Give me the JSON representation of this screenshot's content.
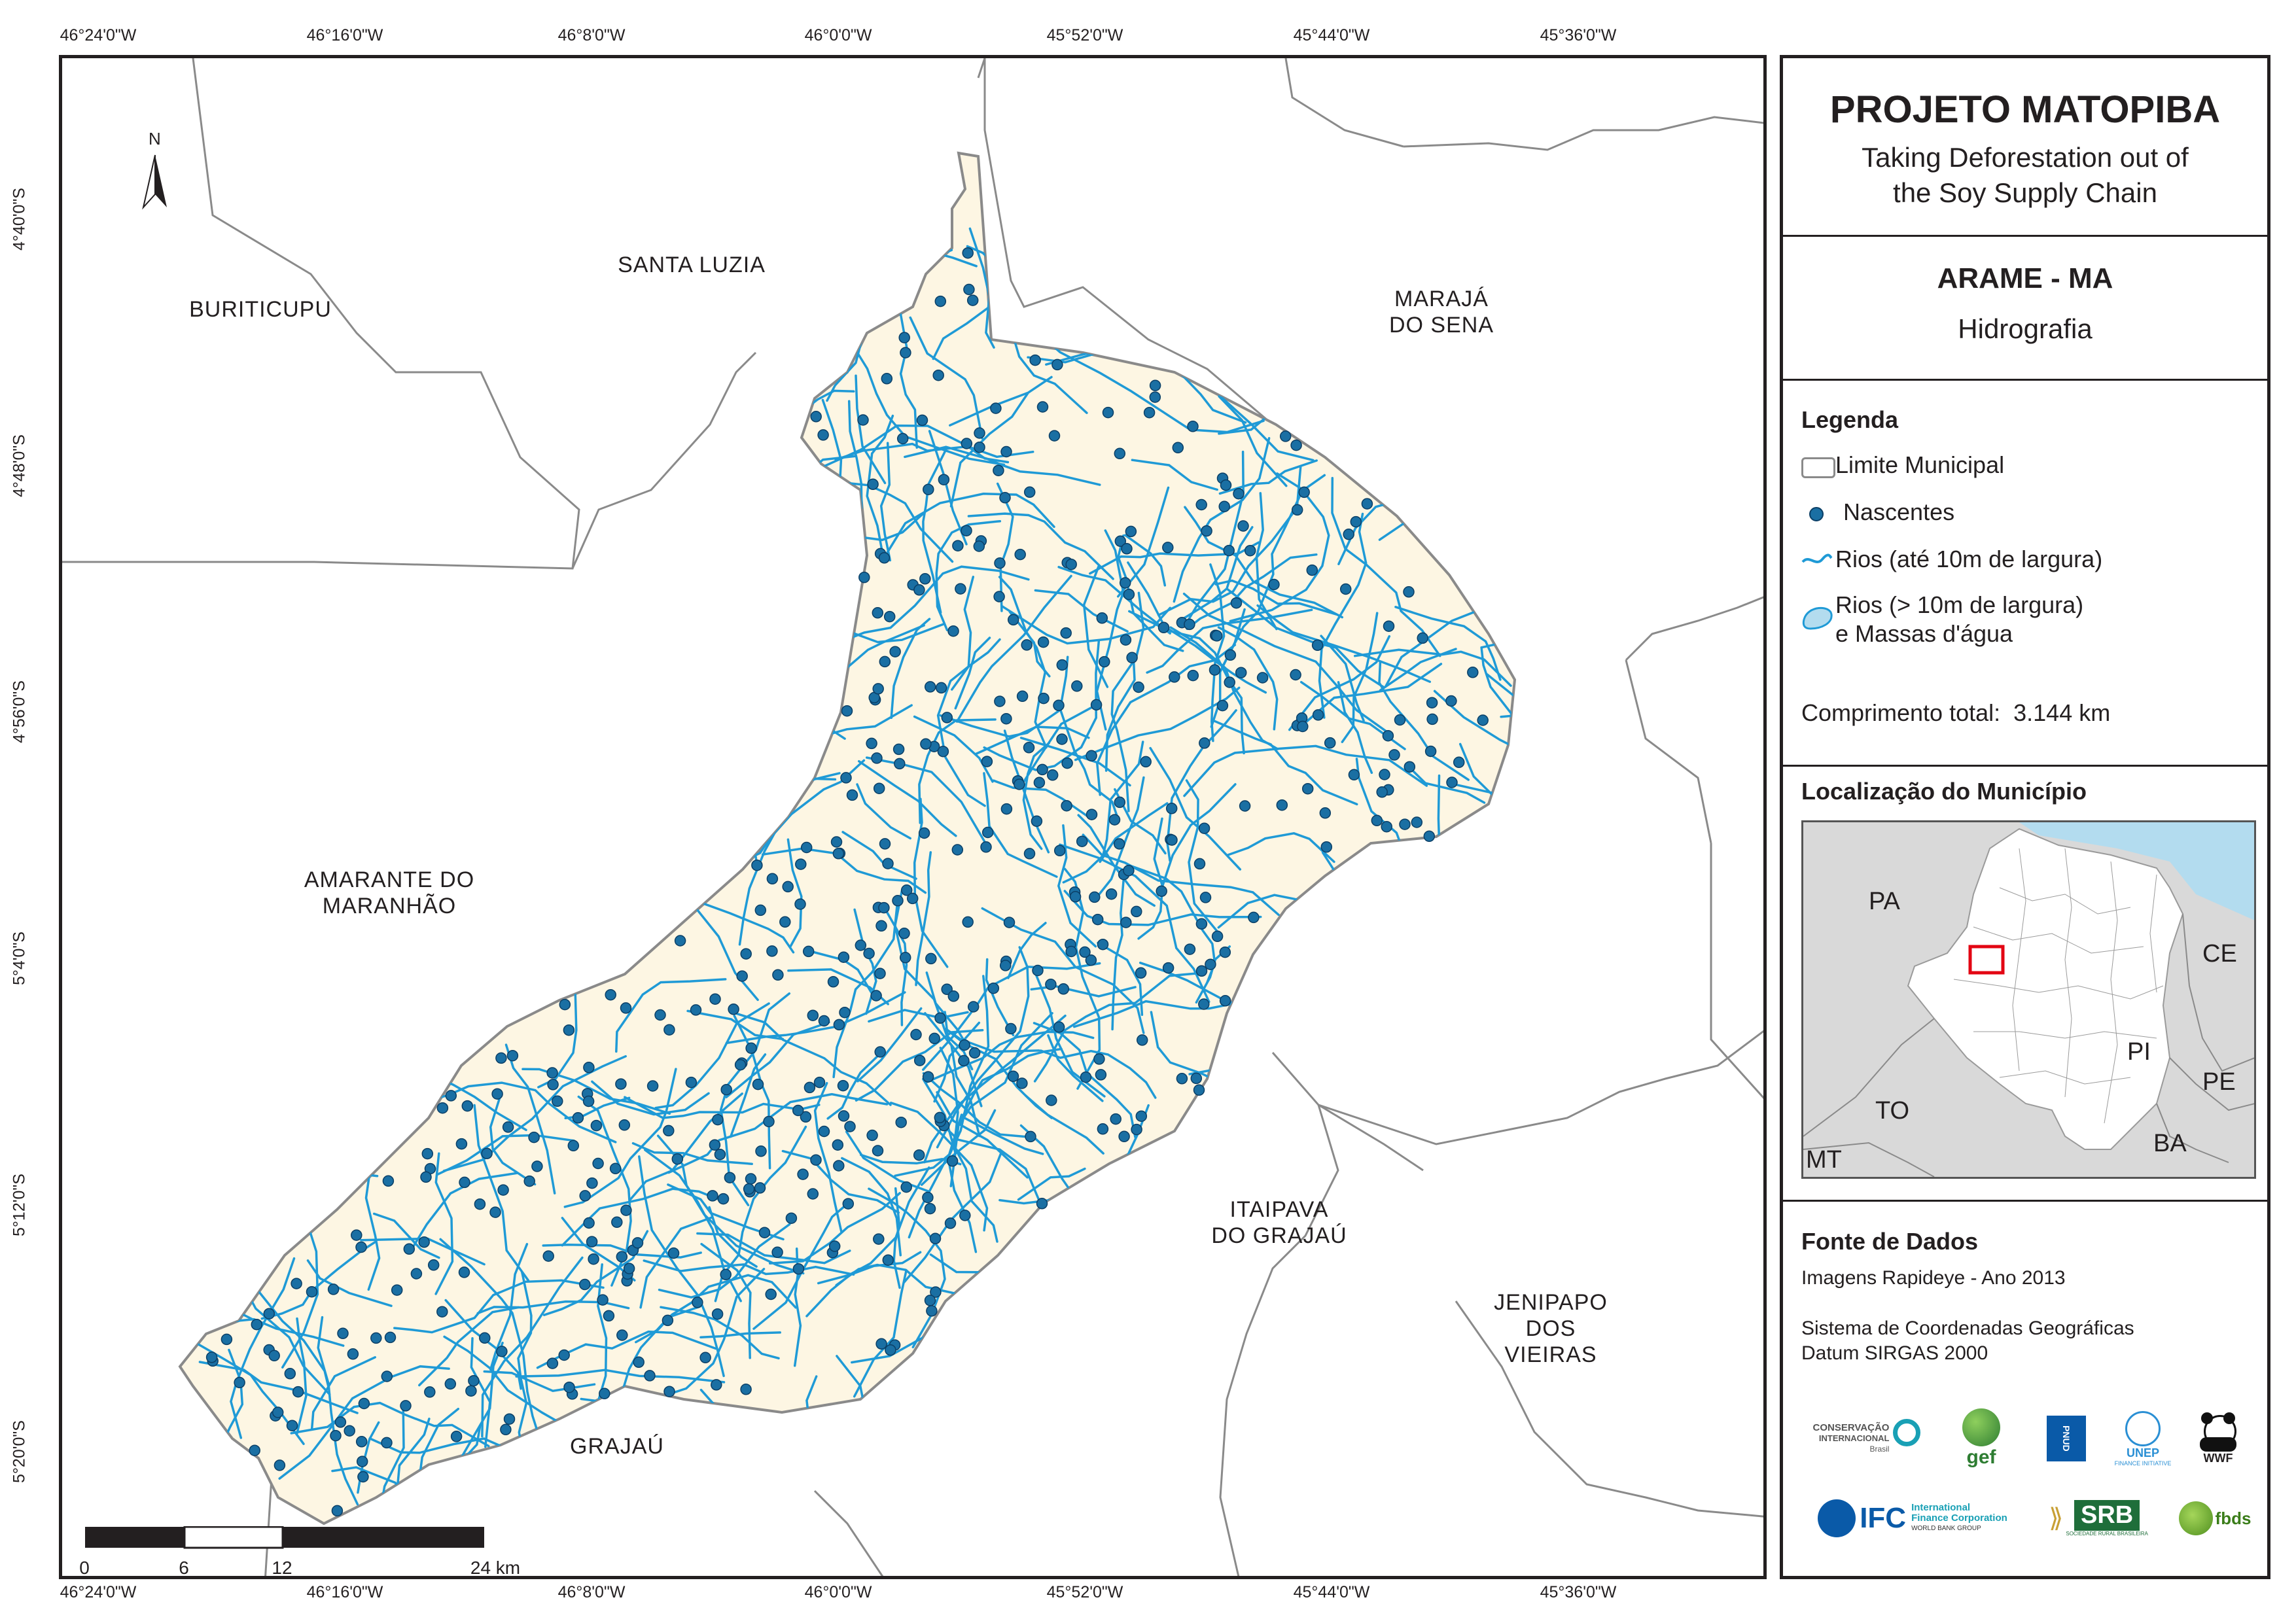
{
  "coordinates": {
    "top": [
      "46°24'0\"W",
      "46°16'0\"W",
      "46°8'0\"W",
      "46°0'0\"W",
      "45°52'0\"W",
      "45°44'0\"W",
      "45°36'0\"W"
    ],
    "bottom": [
      "46°24'0\"W",
      "46°16'0\"W",
      "46°8'0\"W",
      "46°0'0\"W",
      "45°52'0\"W",
      "45°44'0\"W",
      "45°36'0\"W"
    ],
    "left": [
      "4°40'0\"S",
      "4°48'0\"S",
      "4°56'0\"S",
      "5°4'0\"S",
      "5°12'0\"S",
      "5°20'0\"S"
    ]
  },
  "municipalities": {
    "buriticupu": "BURITICUPU",
    "santa_luzia": "SANTA LUZIA",
    "maraja_1": "MARAJÁ",
    "maraja_2": "DO SENA",
    "amarante_1": "AMARANTE DO",
    "amarante_2": "MARANHÃO",
    "itaipava_1": "ITAIPAVA",
    "itaipava_2": "DO GRAJAÚ",
    "jenipapo_1": "JENIPAPO",
    "jenipapo_2": "DOS",
    "jenipapo_3": "VIEIRAS",
    "grajau": "GRAJAÚ"
  },
  "north_label": "N",
  "scale": {
    "ticks": [
      "0",
      "6",
      "12",
      "24 km"
    ]
  },
  "panel": {
    "title": "PROJETO MATOPIBA",
    "subtitle_1": "Taking Deforestation out of",
    "subtitle_2": "the Soy Supply Chain",
    "municipality": "ARAME - MA",
    "theme": "Hidrografia",
    "legend_title": "Legenda",
    "legend": {
      "limite": "Limite Municipal",
      "nascentes": "Nascentes",
      "rios": "Rios (até 10m de largura)",
      "rios_largos_1": "Rios (> 10m de largura)",
      "rios_largos_2": "e Massas d'água"
    },
    "comprimento": "Comprimento total:  3.144 km",
    "localizacao_title": "Localização do Município",
    "loc_labels": {
      "pa": "PA",
      "ce": "CE",
      "pi": "PI",
      "pe": "PE",
      "to": "TO",
      "ba": "BA",
      "mt": "MT"
    },
    "fonte_title": "Fonte de Dados",
    "fonte_1": "Imagens Rapideye - Ano 2013",
    "fonte_2": "Sistema de Coordenadas Geográficas",
    "fonte_3": "Datum SIRGAS 2000"
  },
  "logos": {
    "conservacao_1": "CONSERVAÇÃO",
    "conservacao_2": "INTERNACIONAL",
    "conservacao_3": "Brasil",
    "gef": "gef",
    "pnud": "PNUD",
    "unep": "UNEP",
    "unep_sub": "FINANCE INITIATIVE",
    "wwf": "WWF",
    "ifc": "IFC",
    "ifc_sub_1": "International",
    "ifc_sub_2": "Finance Corporation",
    "ifc_sub_3": "WORLD BANK GROUP",
    "srb": "SRB",
    "srb_sub": "SOCIEDADE RURAL BRASILEIRA",
    "fbds": "fbds"
  },
  "colors": {
    "municipality_fill": "#fdf6e3",
    "river": "#1f9ad6",
    "spring": "#1a6fa3",
    "boundary": "#8a8a8a",
    "locator_box": "#e30613",
    "ocean": "#b3dcef"
  }
}
